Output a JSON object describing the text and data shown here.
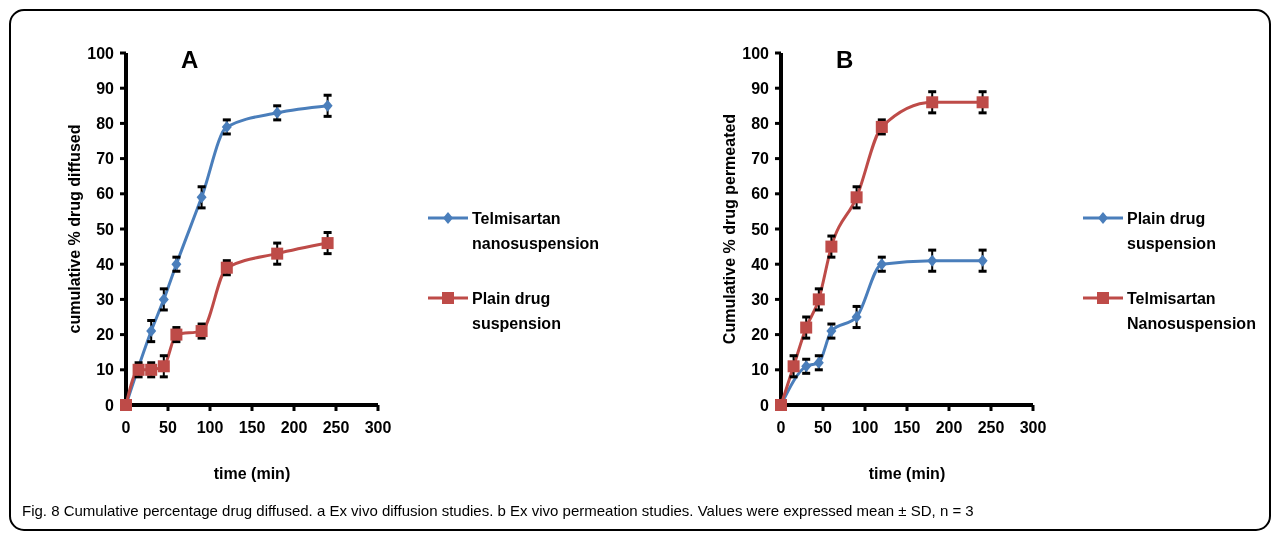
{
  "chart_data": [
    {
      "type": "line",
      "title": "A",
      "xlabel": "time (min)",
      "ylabel": "cumulative % drug diffused",
      "xlim": [
        0,
        300
      ],
      "xticks": [
        0,
        50,
        100,
        150,
        200,
        250,
        300
      ],
      "ylim": [
        0,
        100
      ],
      "yticks": [
        0,
        10,
        20,
        30,
        40,
        50,
        60,
        70,
        80,
        90,
        100
      ],
      "legend": "right",
      "grid": false,
      "x": [
        0,
        15,
        30,
        45,
        60,
        90,
        120,
        180,
        240
      ],
      "series": [
        {
          "name": "Telmisartan nanosuspension",
          "color": "#4a7ebb",
          "marker": "diamond",
          "values": [
            0,
            null,
            21,
            30,
            40,
            59,
            79,
            83,
            85
          ],
          "errors": [
            null,
            null,
            3,
            3,
            2,
            3,
            2,
            2,
            3
          ]
        },
        {
          "name": "Plain drug suspension",
          "color": "#be4b48",
          "marker": "square",
          "values": [
            0,
            10,
            10,
            11,
            20,
            21,
            39,
            43,
            46
          ],
          "errors": [
            null,
            2,
            2,
            3,
            2,
            2,
            2,
            3,
            3
          ]
        }
      ]
    },
    {
      "type": "line",
      "title": "B",
      "xlabel": "time (min)",
      "ylabel": "Cumulative % drug permeated",
      "xlim": [
        0,
        300
      ],
      "xticks": [
        0,
        50,
        100,
        150,
        200,
        250,
        300
      ],
      "ylim": [
        0,
        100
      ],
      "yticks": [
        0,
        10,
        20,
        30,
        40,
        50,
        60,
        70,
        80,
        90,
        100
      ],
      "legend": "right",
      "grid": false,
      "x": [
        0,
        15,
        30,
        45,
        60,
        90,
        120,
        180,
        240
      ],
      "series": [
        {
          "name": "Plain drug suspension",
          "color": "#4a7ebb",
          "marker": "diamond",
          "values": [
            0,
            null,
            11,
            12,
            21,
            25,
            40,
            41,
            41
          ],
          "errors": [
            null,
            null,
            2,
            2,
            2,
            3,
            2,
            3,
            3
          ]
        },
        {
          "name": "Telmisartan Nanosuspension",
          "color": "#be4b48",
          "marker": "square",
          "values": [
            0,
            11,
            22,
            30,
            45,
            59,
            79,
            86,
            86
          ],
          "errors": [
            null,
            3,
            3,
            3,
            3,
            3,
            2,
            3,
            3
          ]
        }
      ],
      "annotations": [
        "Fig. 8 Cumulative percentage drug diffused. a Ex vivo diffusion studies. b Ex vivo permeation studies. Values were expressed mean ± SD, n = 3"
      ]
    }
  ]
}
